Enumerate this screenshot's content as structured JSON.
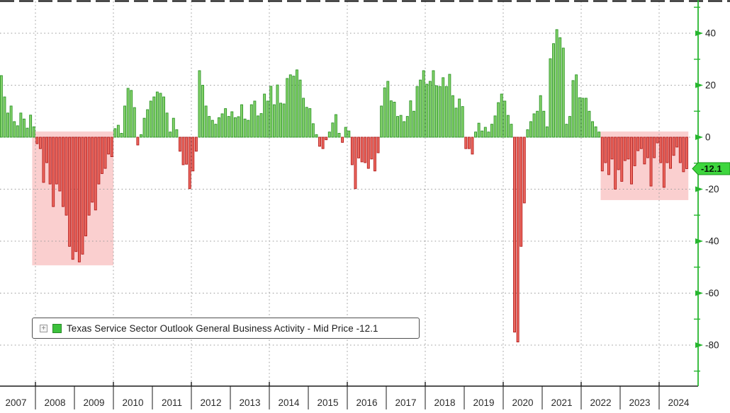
{
  "legend": {
    "expand_icon": "+",
    "label": "Texas Service Sector Outlook General Business Activity - Mid Price -12.1"
  },
  "y_axis": {
    "major_tick_labels": [
      "40",
      "20",
      "0",
      "-20",
      "-40",
      "-60",
      "-80"
    ],
    "major_tick_values": [
      40,
      20,
      0,
      -20,
      -40,
      -60,
      -80
    ],
    "minor_tick_values": [
      50,
      30,
      10,
      -10,
      -30,
      -50,
      -70,
      -90
    ],
    "last_value_tag": "-12.1"
  },
  "x_axis": {
    "years": [
      "2007",
      "2008",
      "2009",
      "2010",
      "2011",
      "2012",
      "2013",
      "2014",
      "2015",
      "2016",
      "2017",
      "2018",
      "2019",
      "2020",
      "2021",
      "2022",
      "2023",
      "2024"
    ]
  },
  "colors": {
    "positive_fill": "#86d46c",
    "positive_stroke": "#2d9427",
    "negative_fill": "#ee6a60",
    "negative_stroke": "#b31b1b",
    "highlight_pink": "#f6a0a0",
    "grid": "#9b9b9b",
    "axis_green": "#27b62f",
    "tag_fill": "#3ed63e",
    "tag_stroke": "#189118",
    "tag_text": "#071a07",
    "axis_black": "#1a1a1a",
    "label_text": "#1a1a1a",
    "top_border": "#2b2b2b"
  },
  "chart_data": {
    "type": "bar",
    "title": "Texas Service Sector Outlook General Business Activity - Mid Price",
    "last_value": -12.1,
    "start_month": "2007-02",
    "frequency": "monthly",
    "ylim": [
      -90,
      52
    ],
    "grid": "dotted",
    "legend_position": "bottom-left",
    "x_years": [
      2007,
      2008,
      2009,
      2010,
      2011,
      2012,
      2013,
      2014,
      2015,
      2016,
      2017,
      2018,
      2019,
      2020,
      2021,
      2022,
      2023,
      2024
    ],
    "y_major_ticks": [
      40,
      20,
      0,
      -20,
      -40,
      -60,
      -80
    ],
    "y_minor_ticks": [
      50,
      30,
      10,
      -10,
      -30,
      -50,
      -70,
      -90
    ],
    "highlight_regions": [
      {
        "from": "2007-12",
        "to": "2010-01",
        "top": 2.2,
        "bottom": -49.3
      },
      {
        "from": "2022-07",
        "to": "2024-10",
        "top": 2.2,
        "bottom": -24.2
      }
    ],
    "monthly_values": [
      23.7,
      15.5,
      9.3,
      12.0,
      6.0,
      4.4,
      9.3,
      7.0,
      3.5,
      8.5,
      4.0,
      -2.5,
      -4.4,
      -17.4,
      -9.8,
      -18.0,
      -26.7,
      -18.0,
      -20.7,
      -26.7,
      -30.0,
      -42.0,
      -47.0,
      -44.0,
      -48.0,
      -45.0,
      -38.0,
      -30.0,
      -25.0,
      -28.0,
      -18.0,
      -14.0,
      -12.0,
      -6.5,
      -7.5,
      3.3,
      4.6,
      1.5,
      12.0,
      18.8,
      18.0,
      11.4,
      -3.0,
      1.0,
      7.3,
      10.6,
      13.9,
      15.5,
      17.4,
      16.9,
      15.5,
      9.3,
      2.0,
      7.3,
      2.9,
      -5.4,
      -10.6,
      -10.4,
      -19.8,
      -13.0,
      -5.4,
      25.6,
      20.0,
      12.0,
      8.0,
      6.5,
      5.0,
      7.5,
      9.0,
      11.0,
      8.0,
      9.8,
      7.5,
      7.9,
      12.5,
      7.0,
      6.5,
      12.5,
      13.9,
      8.2,
      9.1,
      16.6,
      13.9,
      19.6,
      12.5,
      20.1,
      13.1,
      12.8,
      22.6,
      24.0,
      23.5,
      25.9,
      22.0,
      15.0,
      11.5,
      11.0,
      5.2,
      1.0,
      -3.5,
      -4.4,
      -1.0,
      2.0,
      5.5,
      8.7,
      1.5,
      -2.0,
      3.8,
      2.4,
      -10.6,
      -19.8,
      -8.0,
      -9.5,
      -9.8,
      -12.0,
      -8.4,
      -13.0,
      -6.0,
      12.0,
      19.0,
      21.5,
      14.0,
      13.5,
      8.0,
      8.4,
      6.0,
      8.0,
      14.0,
      10.0,
      19.5,
      22.0,
      25.6,
      20.4,
      21.5,
      25.6,
      19.8,
      19.5,
      22.9,
      19.5,
      24.2,
      16.0,
      11.2,
      14.7,
      11.8,
      -4.4,
      -4.4,
      -6.5,
      2.0,
      5.4,
      2.4,
      3.8,
      2.0,
      5.0,
      8.2,
      13.3,
      16.6,
      13.9,
      8.4,
      5.0,
      -75.0,
      -78.8,
      -42.0,
      -25.3,
      2.9,
      6.0,
      9.0,
      10.0,
      16.0,
      10.0,
      4.0,
      30.2,
      36.0,
      41.4,
      38.3,
      34.3,
      5.0,
      8.0,
      21.8,
      24.0,
      15.2,
      15.0,
      15.0,
      10.0,
      6.0,
      4.0,
      2.0,
      -13.0,
      -9.8,
      -14.4,
      -8.4,
      -20.0,
      -12.5,
      -17.0,
      -9.0,
      -8.4,
      -18.0,
      -11.0,
      -5.2,
      -4.4,
      -10.3,
      -7.9,
      -18.8,
      -7.9,
      -2.2,
      -9.8,
      -19.3,
      -9.8,
      -12.0,
      -7.0,
      -3.8,
      -9.8,
      -13.3,
      -12.1
    ]
  }
}
